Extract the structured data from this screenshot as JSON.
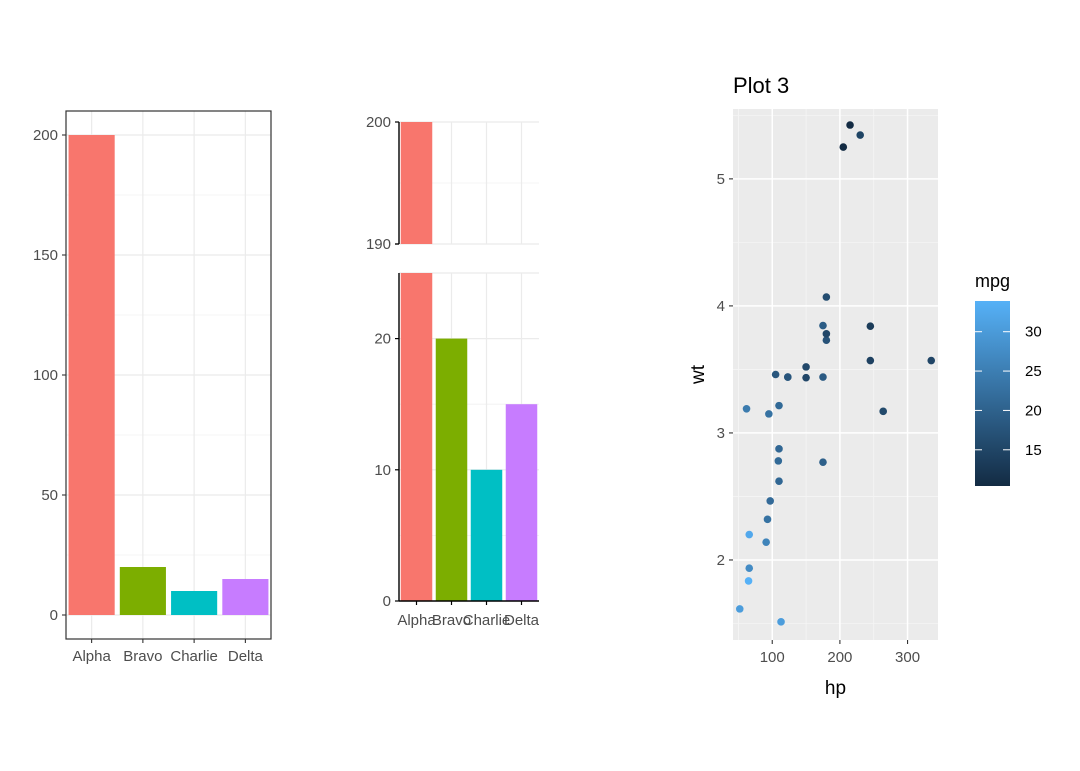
{
  "chart_data": [
    {
      "type": "bar",
      "name": "plot-1",
      "categories": [
        "Alpha",
        "Bravo",
        "Charlie",
        "Delta"
      ],
      "values": [
        200,
        20,
        10,
        15
      ],
      "colors": [
        "#F8766D",
        "#7CAE00",
        "#00BFC4",
        "#C77CFF"
      ],
      "ylim": [
        -10,
        210
      ],
      "yticks": [
        0,
        50,
        100,
        150,
        200
      ],
      "ytick_labels": [
        "0",
        "50",
        "100",
        "150",
        "200"
      ],
      "grid": true,
      "theme": "bw"
    },
    {
      "type": "bar",
      "name": "plot-2-broken-axis",
      "categories": [
        "Alpha",
        "Bravo",
        "Charlie",
        "Delta"
      ],
      "values": [
        200,
        20,
        10,
        15
      ],
      "colors": [
        "#F8766D",
        "#7CAE00",
        "#00BFC4",
        "#C77CFF"
      ],
      "axis_break": [
        25,
        190
      ],
      "upper_ylim": [
        190,
        200
      ],
      "upper_yticks": [
        190,
        200
      ],
      "upper_ytick_labels": [
        "190",
        "200"
      ],
      "lower_ylim": [
        0,
        25
      ],
      "lower_yticks": [
        0,
        10,
        20
      ],
      "lower_ytick_labels": [
        "0",
        "10",
        "20"
      ],
      "grid": true,
      "theme": "classic-grid"
    },
    {
      "type": "scatter",
      "name": "plot-3",
      "title": "Plot 3",
      "xlabel": "hp",
      "ylabel": "wt",
      "xlim": [
        42,
        345
      ],
      "ylim": [
        1.37,
        5.55
      ],
      "xticks": [
        100,
        200,
        300
      ],
      "xtick_labels": [
        "100",
        "200",
        "300"
      ],
      "yticks": [
        2,
        3,
        4,
        5
      ],
      "ytick_labels": [
        "2",
        "3",
        "4",
        "5"
      ],
      "legend": {
        "title": "mpg",
        "position": "right",
        "range": [
          10.4,
          33.9
        ],
        "ticks": [
          15,
          20,
          25,
          30
        ],
        "tick_labels": [
          "15",
          "20",
          "25",
          "30"
        ],
        "low_color": "#132B43",
        "high_color": "#56B1F7"
      },
      "points": [
        {
          "hp": 110,
          "wt": 2.62,
          "mpg": 21.0
        },
        {
          "hp": 110,
          "wt": 2.875,
          "mpg": 21.0
        },
        {
          "hp": 93,
          "wt": 2.32,
          "mpg": 22.8
        },
        {
          "hp": 110,
          "wt": 3.215,
          "mpg": 21.4
        },
        {
          "hp": 175,
          "wt": 3.44,
          "mpg": 18.7
        },
        {
          "hp": 105,
          "wt": 3.46,
          "mpg": 18.1
        },
        {
          "hp": 245,
          "wt": 3.57,
          "mpg": 14.3
        },
        {
          "hp": 62,
          "wt": 3.19,
          "mpg": 24.4
        },
        {
          "hp": 95,
          "wt": 3.15,
          "mpg": 22.8
        },
        {
          "hp": 123,
          "wt": 3.44,
          "mpg": 19.2
        },
        {
          "hp": 123,
          "wt": 3.44,
          "mpg": 17.8
        },
        {
          "hp": 180,
          "wt": 4.07,
          "mpg": 16.4
        },
        {
          "hp": 180,
          "wt": 3.73,
          "mpg": 17.3
        },
        {
          "hp": 180,
          "wt": 3.78,
          "mpg": 15.2
        },
        {
          "hp": 205,
          "wt": 5.25,
          "mpg": 10.4
        },
        {
          "hp": 215,
          "wt": 5.424,
          "mpg": 10.4
        },
        {
          "hp": 230,
          "wt": 5.345,
          "mpg": 14.7
        },
        {
          "hp": 66,
          "wt": 2.2,
          "mpg": 32.4
        },
        {
          "hp": 52,
          "wt": 1.615,
          "mpg": 30.4
        },
        {
          "hp": 65,
          "wt": 1.835,
          "mpg": 33.9
        },
        {
          "hp": 97,
          "wt": 2.465,
          "mpg": 21.5
        },
        {
          "hp": 150,
          "wt": 3.52,
          "mpg": 15.5
        },
        {
          "hp": 150,
          "wt": 3.435,
          "mpg": 15.2
        },
        {
          "hp": 245,
          "wt": 3.84,
          "mpg": 13.3
        },
        {
          "hp": 175,
          "wt": 3.845,
          "mpg": 19.2
        },
        {
          "hp": 66,
          "wt": 1.935,
          "mpg": 27.3
        },
        {
          "hp": 91,
          "wt": 2.14,
          "mpg": 26.0
        },
        {
          "hp": 113,
          "wt": 1.513,
          "mpg": 30.4
        },
        {
          "hp": 264,
          "wt": 3.17,
          "mpg": 15.8
        },
        {
          "hp": 175,
          "wt": 2.77,
          "mpg": 19.7
        },
        {
          "hp": 335,
          "wt": 3.57,
          "mpg": 15.0
        },
        {
          "hp": 109,
          "wt": 2.78,
          "mpg": 21.4
        }
      ]
    }
  ]
}
